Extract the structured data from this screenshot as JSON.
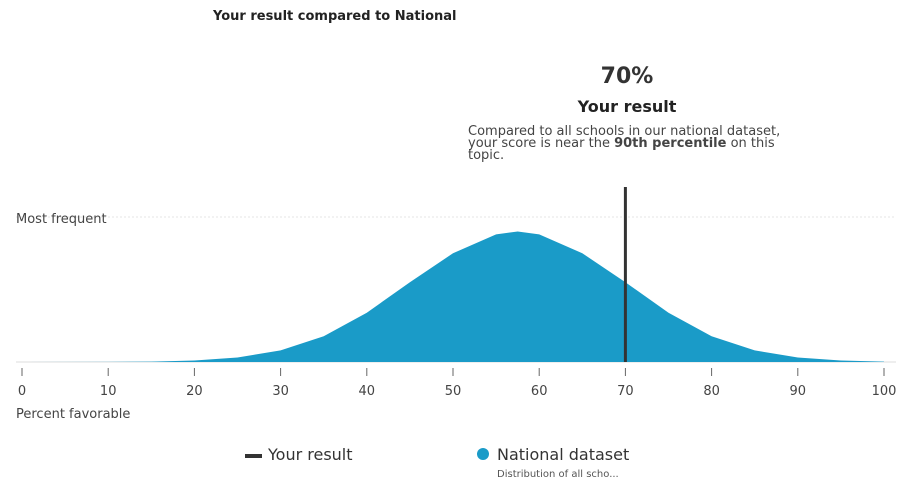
{
  "chart_data": {
    "type": "area",
    "title": "Your result compared to National",
    "x_label": "Percent favorable",
    "x": [
      0,
      10,
      15,
      20,
      25,
      30,
      35,
      40,
      45,
      50,
      55,
      57.5,
      60,
      65,
      70,
      75,
      80,
      85,
      90,
      95,
      100
    ],
    "series": [
      {
        "name": "National dataset",
        "color": "#1a9bc8",
        "values": [
          0,
          0.0007,
          0.003,
          0.01,
          0.031,
          0.08,
          0.178,
          0.34,
          0.55,
          0.75,
          0.88,
          0.9,
          0.88,
          0.75,
          0.55,
          0.34,
          0.178,
          0.08,
          0.031,
          0.01,
          0.003
        ]
      }
    ],
    "legend_note": "Distribution of all scho...",
    "xlim": [
      0,
      100
    ],
    "xticks": [
      0,
      10,
      20,
      30,
      40,
      50,
      60,
      70,
      80,
      90,
      100
    ],
    "ylim": [
      0,
      1
    ],
    "yticks": [
      {
        "value": 1,
        "label": "Most frequent"
      }
    ],
    "grid": true,
    "marker": {
      "value": 70,
      "label": "70%",
      "name": "Your result",
      "color": "#333333"
    },
    "annotation": {
      "title": "Your result",
      "parts": [
        {
          "text": "Compared to all schools in our national dataset, your score is near the ",
          "bold": false
        },
        {
          "text": "90th percentile",
          "bold": true
        },
        {
          "text": " on this topic.",
          "bold": false
        }
      ]
    }
  }
}
